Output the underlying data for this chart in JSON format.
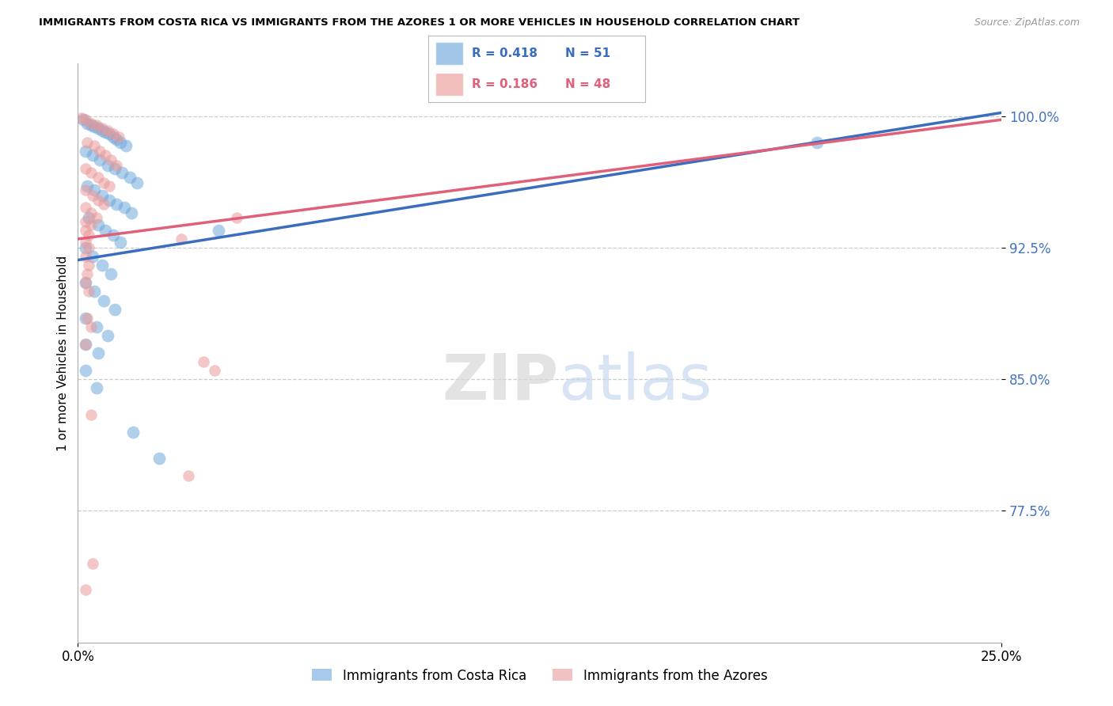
{
  "title": "IMMIGRANTS FROM COSTA RICA VS IMMIGRANTS FROM THE AZORES 1 OR MORE VEHICLES IN HOUSEHOLD CORRELATION CHART",
  "source": "Source: ZipAtlas.com",
  "ylabel": "1 or more Vehicles in Household",
  "y_ticks": [
    77.5,
    85.0,
    92.5,
    100.0
  ],
  "y_tick_labels": [
    "77.5%",
    "85.0%",
    "92.5%",
    "100.0%"
  ],
  "x_range": [
    0.0,
    25.0
  ],
  "y_range": [
    70.0,
    103.0
  ],
  "legend_blue_label": "Immigrants from Costa Rica",
  "legend_pink_label": "Immigrants from the Azores",
  "blue_R": 0.418,
  "blue_N": 51,
  "pink_R": 0.186,
  "pink_N": 48,
  "blue_color": "#6fa8dc",
  "pink_color": "#ea9999",
  "blue_line_color": "#3b6dbf",
  "pink_line_color": "#e0607a",
  "watermark_zip": "ZIP",
  "watermark_atlas": "atlas",
  "blue_line_x0": 0.0,
  "blue_line_y0": 91.8,
  "blue_line_x1": 25.0,
  "blue_line_y1": 100.2,
  "pink_line_x0": 0.0,
  "pink_line_y0": 93.0,
  "pink_line_x1": 25.0,
  "pink_line_y1": 99.8,
  "blue_scatter": [
    [
      0.15,
      99.8
    ],
    [
      0.25,
      99.6
    ],
    [
      0.35,
      99.5
    ],
    [
      0.45,
      99.4
    ],
    [
      0.55,
      99.3
    ],
    [
      0.65,
      99.2
    ],
    [
      0.75,
      99.1
    ],
    [
      0.85,
      99.0
    ],
    [
      0.95,
      98.8
    ],
    [
      1.05,
      98.7
    ],
    [
      1.15,
      98.5
    ],
    [
      1.3,
      98.3
    ],
    [
      0.2,
      98.0
    ],
    [
      0.4,
      97.8
    ],
    [
      0.6,
      97.5
    ],
    [
      0.8,
      97.2
    ],
    [
      1.0,
      97.0
    ],
    [
      1.2,
      96.8
    ],
    [
      1.4,
      96.5
    ],
    [
      1.6,
      96.2
    ],
    [
      0.25,
      96.0
    ],
    [
      0.45,
      95.8
    ],
    [
      0.65,
      95.5
    ],
    [
      0.85,
      95.2
    ],
    [
      1.05,
      95.0
    ],
    [
      1.25,
      94.8
    ],
    [
      1.45,
      94.5
    ],
    [
      0.3,
      94.2
    ],
    [
      0.55,
      93.8
    ],
    [
      0.75,
      93.5
    ],
    [
      0.95,
      93.2
    ],
    [
      1.15,
      92.8
    ],
    [
      0.2,
      92.5
    ],
    [
      0.4,
      92.0
    ],
    [
      0.65,
      91.5
    ],
    [
      0.9,
      91.0
    ],
    [
      0.2,
      90.5
    ],
    [
      0.45,
      90.0
    ],
    [
      0.7,
      89.5
    ],
    [
      1.0,
      89.0
    ],
    [
      0.2,
      88.5
    ],
    [
      0.5,
      88.0
    ],
    [
      0.8,
      87.5
    ],
    [
      0.2,
      87.0
    ],
    [
      0.55,
      86.5
    ],
    [
      0.2,
      85.5
    ],
    [
      0.5,
      84.5
    ],
    [
      1.5,
      82.0
    ],
    [
      2.2,
      80.5
    ],
    [
      20.0,
      98.5
    ],
    [
      3.8,
      93.5
    ]
  ],
  "pink_scatter": [
    [
      0.1,
      99.9
    ],
    [
      0.2,
      99.8
    ],
    [
      0.35,
      99.6
    ],
    [
      0.5,
      99.5
    ],
    [
      0.65,
      99.3
    ],
    [
      0.8,
      99.2
    ],
    [
      0.95,
      99.0
    ],
    [
      1.1,
      98.8
    ],
    [
      0.25,
      98.5
    ],
    [
      0.45,
      98.3
    ],
    [
      0.6,
      98.0
    ],
    [
      0.75,
      97.8
    ],
    [
      0.9,
      97.5
    ],
    [
      1.05,
      97.2
    ],
    [
      0.2,
      97.0
    ],
    [
      0.35,
      96.8
    ],
    [
      0.55,
      96.5
    ],
    [
      0.7,
      96.2
    ],
    [
      0.85,
      96.0
    ],
    [
      0.2,
      95.8
    ],
    [
      0.4,
      95.5
    ],
    [
      0.55,
      95.2
    ],
    [
      0.7,
      95.0
    ],
    [
      0.2,
      94.8
    ],
    [
      0.35,
      94.5
    ],
    [
      0.5,
      94.2
    ],
    [
      0.2,
      94.0
    ],
    [
      0.35,
      93.8
    ],
    [
      0.2,
      93.5
    ],
    [
      0.3,
      93.2
    ],
    [
      0.2,
      92.8
    ],
    [
      0.3,
      92.5
    ],
    [
      0.2,
      92.0
    ],
    [
      0.3,
      91.5
    ],
    [
      0.25,
      91.0
    ],
    [
      0.2,
      90.5
    ],
    [
      0.3,
      90.0
    ],
    [
      2.8,
      93.0
    ],
    [
      4.3,
      94.2
    ],
    [
      0.25,
      88.5
    ],
    [
      0.35,
      88.0
    ],
    [
      0.2,
      87.0
    ],
    [
      3.4,
      86.0
    ],
    [
      3.7,
      85.5
    ],
    [
      0.35,
      83.0
    ],
    [
      3.0,
      79.5
    ],
    [
      0.4,
      74.5
    ],
    [
      0.2,
      73.0
    ]
  ]
}
